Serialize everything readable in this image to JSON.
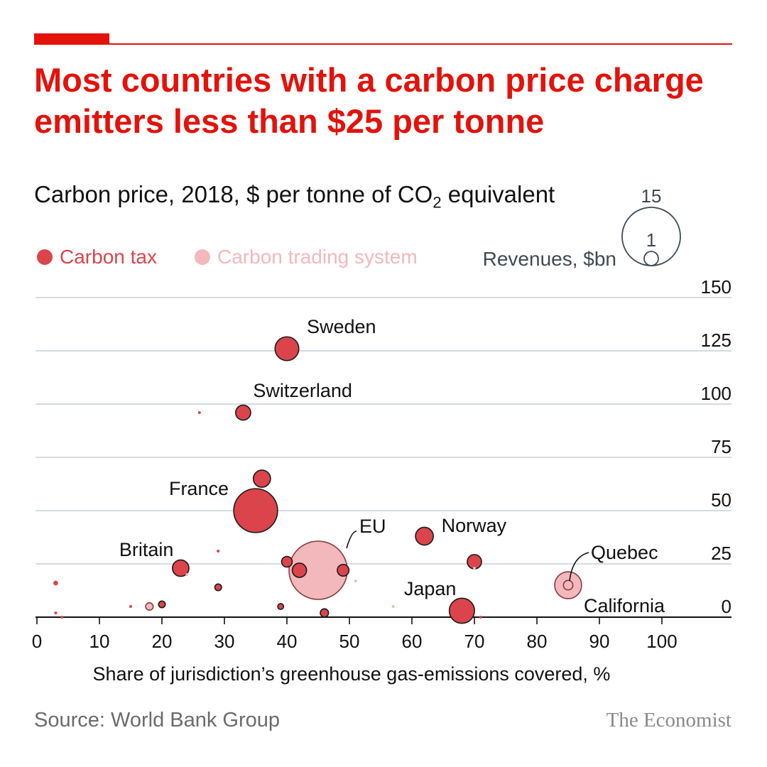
{
  "title": "Most countries with a carbon price charge emitters less than $25 per tonne",
  "subtitle_main": "Carbon price, 2018, $ per tonne of CO",
  "subtitle_sub": "2",
  "subtitle_tail": " equivalent",
  "legend": {
    "tax_label": "Carbon tax",
    "trading_label": "Carbon trading system",
    "size_title": "Revenues, $bn",
    "size_large": "15",
    "size_small": "1"
  },
  "source": "Source: World Bank Group",
  "brand": "The Economist",
  "colors": {
    "accent": "#e3120b",
    "tax": "#db444b",
    "tax_stroke": "#1a1a1a",
    "trading": "#f2b8bb",
    "grid": "#c6d1d8",
    "text": "#111111",
    "label_grey": "#3f4a52"
  },
  "chart_data": {
    "type": "scatter",
    "title": "Most countries with a carbon price charge emitters less than $25 per tonne",
    "xlabel": "Share of jurisdiction’s greenhouse gas-emissions covered, %",
    "ylabel": "Carbon price, 2018, $ per tonne of CO₂ equivalent",
    "xlim": [
      0,
      110
    ],
    "ylim": [
      0,
      150
    ],
    "xticks": [
      0,
      10,
      20,
      30,
      40,
      50,
      60,
      70,
      80,
      90,
      100
    ],
    "yticks": [
      0,
      25,
      50,
      75,
      100,
      125,
      150
    ],
    "grid": true,
    "size_variable": "Revenues, $bn",
    "series": [
      {
        "name": "Carbon tax",
        "points": [
          {
            "x": 40,
            "y": 126,
            "r": 2.5,
            "label": "Sweden"
          },
          {
            "x": 33,
            "y": 96,
            "r": 1.0,
            "label": "Switzerland"
          },
          {
            "x": 26,
            "y": 96,
            "r": 0.02
          },
          {
            "x": 36,
            "y": 65,
            "r": 1.3
          },
          {
            "x": 35,
            "y": 50,
            "r": 8.5,
            "label": "France"
          },
          {
            "x": 62,
            "y": 38,
            "r": 1.4,
            "label": "Norway"
          },
          {
            "x": 29,
            "y": 31,
            "r": 0.02
          },
          {
            "x": 70,
            "y": 26,
            "r": 0.9
          },
          {
            "x": 40,
            "y": 26,
            "r": 0.5
          },
          {
            "x": 42,
            "y": 22,
            "r": 0.9
          },
          {
            "x": 49,
            "y": 22,
            "r": 0.6
          },
          {
            "x": 23,
            "y": 23,
            "r": 1.2,
            "label": "Britain"
          },
          {
            "x": 3,
            "y": 16,
            "r": 0.1
          },
          {
            "x": 29,
            "y": 14,
            "r": 0.2
          },
          {
            "x": 20,
            "y": 6,
            "r": 0.2
          },
          {
            "x": 15,
            "y": 5,
            "r": 0.02
          },
          {
            "x": 39,
            "y": 5,
            "r": 0.15
          },
          {
            "x": 46,
            "y": 2,
            "r": 0.3
          },
          {
            "x": 68,
            "y": 3,
            "r": 2.8,
            "label": "Japan"
          },
          {
            "x": 3,
            "y": 2,
            "r": 0.02
          },
          {
            "x": 4,
            "y": 0,
            "r": 0.01
          },
          {
            "x": 71,
            "y": 0,
            "r": 0.01
          }
        ]
      },
      {
        "name": "Carbon trading system",
        "points": [
          {
            "x": 45,
            "y": 22,
            "r": 15.0,
            "label": "EU"
          },
          {
            "x": 85,
            "y": 15,
            "r": 3.2,
            "label": "California"
          },
          {
            "x": 85,
            "y": 15,
            "r": 0.4,
            "label": "Quebec"
          },
          {
            "x": 18,
            "y": 5,
            "r": 0.25
          },
          {
            "x": 51,
            "y": 17,
            "r": 0.01
          },
          {
            "x": 57,
            "y": 5,
            "r": 0.01
          },
          {
            "x": 70,
            "y": 23,
            "r": 0.02
          },
          {
            "x": 24,
            "y": 20,
            "r": 0.01
          }
        ]
      }
    ]
  }
}
